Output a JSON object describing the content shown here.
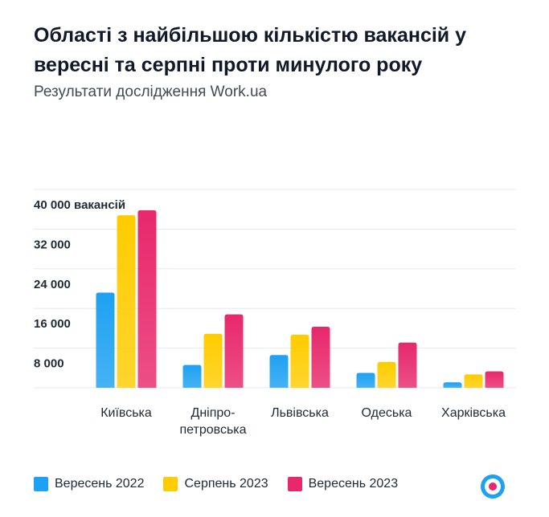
{
  "header": {
    "title": "Області з найбільшою кількістю вакансій у вересні та серпні проти минулого року",
    "subtitle": "Результати дослідження Work.ua"
  },
  "colors": {
    "sep2022": "#1da1f2",
    "aug2023": "#ffcc00",
    "sep2023": "#e8286b",
    "grid": "#e6e8eb",
    "tick_text": "#1f2a37"
  },
  "brand": {
    "logo_icon": "work-ua-logo-icon"
  },
  "chart_data": {
    "type": "bar",
    "categories": [
      "Київська",
      "Дніпро-\nпетровська",
      "Львівська",
      "Одеська",
      "Харківська"
    ],
    "series": [
      {
        "name": "Вересень 2022",
        "color": "#1da1f2",
        "values": [
          19200,
          4600,
          6600,
          3000,
          1100
        ]
      },
      {
        "name": "Серпень 2023",
        "color": "#ffcc00",
        "values": [
          34800,
          10900,
          10700,
          5200,
          2700
        ]
      },
      {
        "name": "Вересень 2023",
        "color": "#e8286b",
        "values": [
          35800,
          14800,
          12300,
          9100,
          3300
        ]
      }
    ],
    "ylim": [
      0,
      40000
    ],
    "yticks": [
      8000,
      16000,
      24000,
      32000,
      40000
    ],
    "ytick_labels": [
      "8 000",
      "16 000",
      "24 000",
      "32 000",
      "40 000 вакансій"
    ],
    "grid": true,
    "legend_position": "bottom"
  }
}
